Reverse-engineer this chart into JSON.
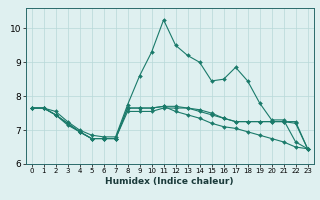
{
  "bg_color": "#dff0f0",
  "grid_color": "#b8d8d8",
  "line_color": "#1a7a6a",
  "xlabel": "Humidex (Indice chaleur)",
  "xlim": [
    -0.5,
    23.5
  ],
  "ylim": [
    6,
    10.6
  ],
  "xticks": [
    0,
    1,
    2,
    3,
    4,
    5,
    6,
    7,
    8,
    9,
    10,
    11,
    12,
    13,
    14,
    15,
    16,
    17,
    18,
    19,
    20,
    21,
    22,
    23
  ],
  "yticks": [
    6,
    7,
    8,
    9,
    10
  ],
  "line1_x": [
    0,
    1,
    2,
    3,
    4,
    5,
    6,
    7,
    8,
    9,
    10,
    11,
    12,
    13,
    14,
    15,
    16,
    17,
    18,
    19,
    20,
    21,
    22,
    23
  ],
  "line1_y": [
    7.65,
    7.65,
    7.55,
    7.25,
    7.0,
    6.85,
    6.8,
    6.8,
    7.75,
    8.6,
    9.3,
    10.25,
    9.5,
    9.2,
    9.0,
    8.45,
    8.5,
    8.85,
    8.45,
    7.8,
    7.3,
    7.3,
    6.65,
    6.45
  ],
  "line2_x": [
    0,
    1,
    2,
    3,
    4,
    5,
    6,
    7,
    8,
    9,
    10,
    11,
    12,
    13,
    14,
    15,
    16,
    17,
    18,
    19,
    20,
    21,
    22,
    23
  ],
  "line2_y": [
    7.65,
    7.65,
    7.45,
    7.15,
    6.95,
    6.75,
    6.75,
    6.75,
    7.55,
    7.55,
    7.55,
    7.65,
    7.65,
    7.65,
    7.6,
    7.5,
    7.35,
    7.25,
    7.25,
    7.25,
    7.25,
    7.25,
    7.2,
    6.45
  ],
  "line3_x": [
    0,
    1,
    2,
    3,
    4,
    5,
    6,
    7,
    8,
    9,
    10,
    11,
    12,
    13,
    14,
    15,
    16,
    17,
    18,
    19,
    20,
    21,
    22,
    23
  ],
  "line3_y": [
    7.65,
    7.65,
    7.45,
    7.2,
    6.95,
    6.75,
    6.75,
    6.75,
    7.65,
    7.65,
    7.65,
    7.7,
    7.7,
    7.65,
    7.55,
    7.45,
    7.35,
    7.25,
    7.25,
    7.25,
    7.25,
    7.25,
    7.25,
    6.45
  ],
  "line4_x": [
    0,
    1,
    2,
    3,
    4,
    5,
    6,
    7,
    8,
    9,
    10,
    11,
    12,
    13,
    14,
    15,
    16,
    17,
    18,
    19,
    20,
    21,
    22,
    23
  ],
  "line4_y": [
    7.65,
    7.65,
    7.45,
    7.2,
    6.95,
    6.75,
    6.75,
    6.75,
    7.65,
    7.65,
    7.65,
    7.7,
    7.55,
    7.45,
    7.35,
    7.2,
    7.1,
    7.05,
    6.95,
    6.85,
    6.75,
    6.65,
    6.5,
    6.45
  ],
  "title_fontsize": 7,
  "xlabel_fontsize": 6.5,
  "xtick_fontsize": 5.0,
  "ytick_fontsize": 6.5,
  "marker_size": 2.0,
  "line_width": 0.8
}
